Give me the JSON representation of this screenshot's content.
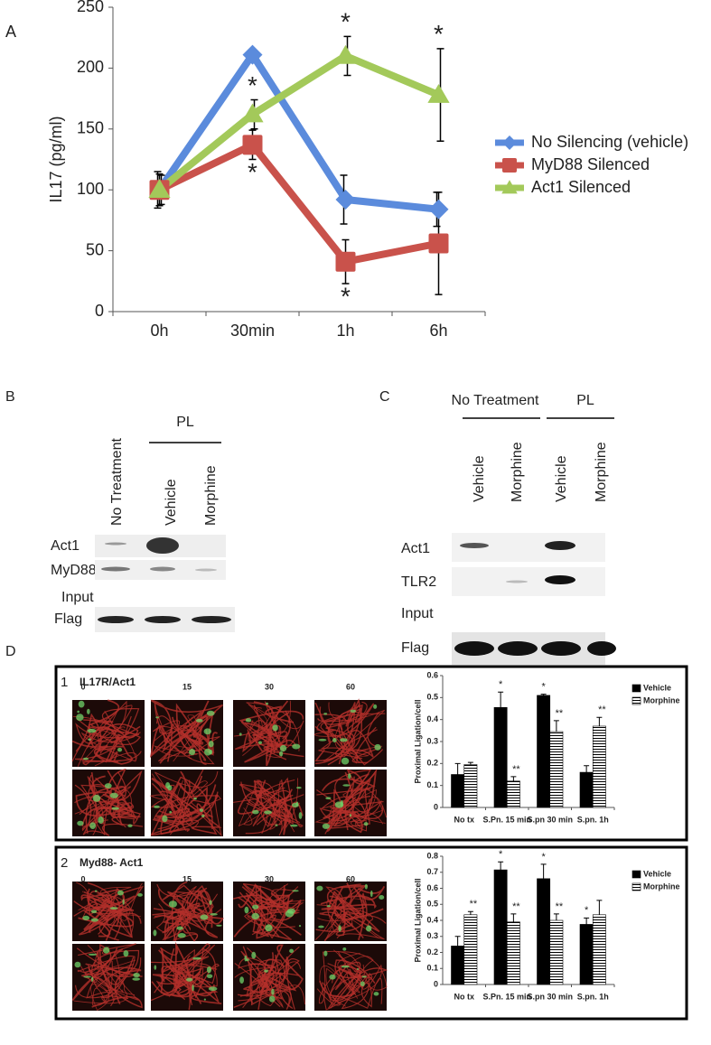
{
  "panel_labels": {
    "a": "A",
    "b": "B",
    "c": "C",
    "d": "D"
  },
  "chart_data": [
    {
      "type": "line",
      "ylabel": "IL17 (pg/ml)",
      "categories": [
        "0h",
        "30min",
        "1h",
        "6h"
      ],
      "ylim": [
        0,
        250
      ],
      "yticks": [
        0,
        50,
        100,
        150,
        200,
        250
      ],
      "grid": false,
      "legend": "right",
      "series": [
        {
          "name": "No Silencing (vehicle)",
          "color": "#5b8bdc",
          "marker": "diamond",
          "values": [
            100,
            211,
            92,
            84
          ],
          "errors": [
            15,
            0,
            20,
            14
          ]
        },
        {
          "name": "MyD88 Silenced",
          "color": "#c9524b",
          "marker": "square",
          "values": [
            100,
            137,
            41,
            56
          ],
          "errors": [
            13,
            12,
            18,
            42
          ]
        },
        {
          "name": "Act1 Silenced",
          "color": "#a3c95a",
          "marker": "triangle",
          "values": [
            100,
            162,
            210,
            178
          ],
          "errors": [
            12,
            12,
            16,
            38
          ]
        }
      ],
      "annotations": [
        {
          "text": "*",
          "series": 2,
          "index": 1,
          "side": "above"
        },
        {
          "text": "*",
          "series": 2,
          "index": 2,
          "side": "above"
        },
        {
          "text": "*",
          "series": 2,
          "index": 3,
          "side": "above"
        },
        {
          "text": "*",
          "series": 1,
          "index": 1,
          "side": "below"
        },
        {
          "text": "*",
          "series": 1,
          "index": 2,
          "side": "below"
        }
      ]
    },
    {
      "type": "bar",
      "number": "1",
      "title": "IL17R/Act1",
      "times": [
        "0",
        "15",
        "30",
        "60"
      ],
      "ylabel": "Proximal Ligation/cell",
      "categories": [
        "No tx",
        "S.Pn. 15 min",
        "S.pn 30 min",
        "S.pn. 1h"
      ],
      "ylim": [
        0,
        0.6
      ],
      "yticks": [
        0,
        0.1,
        0.2,
        0.3,
        0.4,
        0.5,
        0.6
      ],
      "grid": false,
      "legend": "upper right",
      "series": [
        {
          "name": "Vehicle",
          "color": "#000000",
          "pattern": "solid",
          "values": [
            0.15,
            0.455,
            0.51,
            0.16
          ],
          "errors": [
            0.05,
            0.07,
            0.005,
            0.03
          ]
        },
        {
          "name": "Morphine",
          "color": "#000000",
          "pattern": "hatch",
          "values": [
            0.195,
            0.12,
            0.345,
            0.37
          ],
          "errors": [
            0.01,
            0.02,
            0.05,
            0.04
          ]
        }
      ],
      "annotations": [
        {
          "text": "*",
          "series": 0,
          "index": 1,
          "side": "above"
        },
        {
          "text": "*",
          "series": 0,
          "index": 2,
          "side": "above"
        },
        {
          "text": "**",
          "series": 1,
          "index": 1,
          "side": "above"
        },
        {
          "text": "**",
          "series": 1,
          "index": 2,
          "side": "above"
        },
        {
          "text": "**",
          "series": 1,
          "index": 3,
          "side": "above"
        }
      ]
    },
    {
      "type": "bar",
      "number": "2",
      "title": "Myd88- Act1",
      "times": [
        "0",
        "15",
        "30",
        "60"
      ],
      "ylabel": "Proximal Ligation/cell",
      "categories": [
        "No tx",
        "S.Pn. 15 min",
        "S.pn 30 min",
        "S.pn. 1h"
      ],
      "ylim": [
        0,
        0.8
      ],
      "yticks": [
        0,
        0.1,
        0.2,
        0.3,
        0.4,
        0.5,
        0.6,
        0.7,
        0.8
      ],
      "grid": false,
      "legend": "upper right",
      "series": [
        {
          "name": "Vehicle",
          "color": "#000000",
          "pattern": "solid",
          "values": [
            0.24,
            0.715,
            0.66,
            0.375
          ],
          "errors": [
            0.06,
            0.05,
            0.09,
            0.04
          ]
        },
        {
          "name": "Morphine",
          "color": "#000000",
          "pattern": "hatch",
          "values": [
            0.435,
            0.39,
            0.4,
            0.435
          ],
          "errors": [
            0.02,
            0.05,
            0.04,
            0.09
          ]
        }
      ],
      "annotations": [
        {
          "text": "*",
          "series": 0,
          "index": 1,
          "side": "above"
        },
        {
          "text": "*",
          "series": 0,
          "index": 2,
          "side": "above"
        },
        {
          "text": "*",
          "series": 0,
          "index": 3,
          "side": "above"
        },
        {
          "text": "**",
          "series": 1,
          "index": 0,
          "side": "above"
        },
        {
          "text": "**",
          "series": 1,
          "index": 1,
          "side": "above"
        },
        {
          "text": "**",
          "series": 1,
          "index": 2,
          "side": "above"
        }
      ]
    }
  ],
  "blot_b": {
    "lanes": [
      "No Treatment",
      "Vehicle",
      "Morphine"
    ],
    "group": "PL",
    "rows": [
      "Act1",
      "MyD88"
    ],
    "input": "Input",
    "loading": "Flag"
  },
  "blot_c": {
    "groups": [
      "No Treatment",
      "PL"
    ],
    "lanes": [
      "Vehicle",
      "Morphine",
      "Vehicle",
      "Morphine"
    ],
    "rows": [
      "Act1",
      "TLR2"
    ],
    "input": "Input",
    "loading": "Flag"
  }
}
